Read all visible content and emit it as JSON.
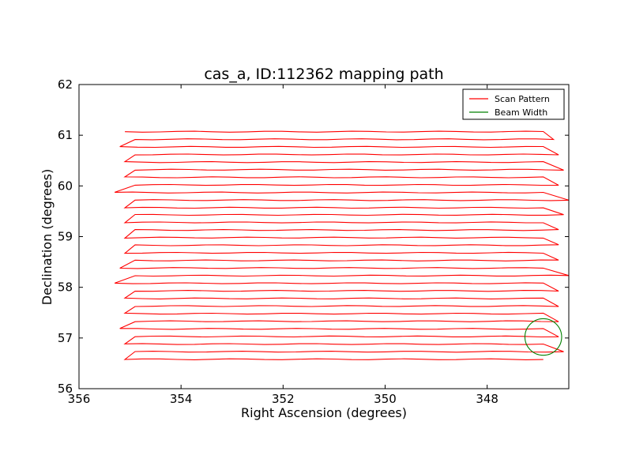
{
  "chart_data": {
    "type": "line",
    "title": "cas_a, ID:112362 mapping path",
    "xlabel": "Right Ascension (degrees)",
    "ylabel": "Declination (degrees)",
    "xlim": [
      356.0,
      346.4
    ],
    "ylim": [
      56,
      62
    ],
    "x_reversed": true,
    "x_ticks": [
      356,
      354,
      352,
      350,
      348
    ],
    "x_tick_labels": [
      "356",
      "354",
      "352",
      "350",
      "348"
    ],
    "y_ticks": [
      56,
      57,
      58,
      59,
      60,
      61,
      62
    ],
    "y_tick_labels": [
      "56",
      "57",
      "58",
      "59",
      "60",
      "61",
      "62"
    ],
    "grid": false,
    "legend_position": "top-right",
    "series": [
      {
        "name": "Scan Pattern",
        "color": "#ff0000",
        "style": "line",
        "rows": [
          {
            "dec": 61.07,
            "ra_start": 355.1,
            "ra_end": 346.9
          },
          {
            "dec": 60.92,
            "ra_start": 354.9,
            "ra_end": 346.7
          },
          {
            "dec": 60.77,
            "ra_start": 355.2,
            "ra_end": 346.9
          },
          {
            "dec": 60.62,
            "ra_start": 354.9,
            "ra_end": 346.6
          },
          {
            "dec": 60.47,
            "ra_start": 355.1,
            "ra_end": 346.9
          },
          {
            "dec": 60.32,
            "ra_start": 354.9,
            "ra_end": 346.5
          },
          {
            "dec": 60.17,
            "ra_start": 355.1,
            "ra_end": 346.9
          },
          {
            "dec": 60.02,
            "ra_start": 354.9,
            "ra_end": 346.6
          },
          {
            "dec": 59.87,
            "ra_start": 355.3,
            "ra_end": 346.9
          },
          {
            "dec": 59.72,
            "ra_start": 354.9,
            "ra_end": 346.4
          },
          {
            "dec": 59.57,
            "ra_start": 355.1,
            "ra_end": 346.9
          },
          {
            "dec": 59.43,
            "ra_start": 354.9,
            "ra_end": 346.5
          },
          {
            "dec": 59.28,
            "ra_start": 355.1,
            "ra_end": 346.9
          },
          {
            "dec": 59.13,
            "ra_start": 354.9,
            "ra_end": 346.6
          },
          {
            "dec": 58.98,
            "ra_start": 355.1,
            "ra_end": 346.9
          },
          {
            "dec": 58.83,
            "ra_start": 354.9,
            "ra_end": 346.6
          },
          {
            "dec": 58.68,
            "ra_start": 355.1,
            "ra_end": 346.9
          },
          {
            "dec": 58.53,
            "ra_start": 354.9,
            "ra_end": 346.6
          },
          {
            "dec": 58.38,
            "ra_start": 355.2,
            "ra_end": 346.9
          },
          {
            "dec": 58.23,
            "ra_start": 354.9,
            "ra_end": 346.4
          },
          {
            "dec": 58.08,
            "ra_start": 355.3,
            "ra_end": 346.9
          },
          {
            "dec": 57.93,
            "ra_start": 354.9,
            "ra_end": 346.6
          },
          {
            "dec": 57.78,
            "ra_start": 355.1,
            "ra_end": 346.9
          },
          {
            "dec": 57.63,
            "ra_start": 354.9,
            "ra_end": 346.6
          },
          {
            "dec": 57.48,
            "ra_start": 355.1,
            "ra_end": 346.9
          },
          {
            "dec": 57.33,
            "ra_start": 354.9,
            "ra_end": 346.6
          },
          {
            "dec": 57.18,
            "ra_start": 355.2,
            "ra_end": 346.9
          },
          {
            "dec": 57.03,
            "ra_start": 354.9,
            "ra_end": 346.6
          },
          {
            "dec": 56.88,
            "ra_start": 355.1,
            "ra_end": 346.9
          },
          {
            "dec": 56.73,
            "ra_start": 354.9,
            "ra_end": 346.5
          },
          {
            "dec": 56.58,
            "ra_start": 355.1,
            "ra_end": 346.9
          }
        ]
      },
      {
        "name": "Beam Width",
        "color": "#008000",
        "style": "circle",
        "center": {
          "ra": 346.9,
          "dec": 57.02
        },
        "radius_deg": 0.36
      }
    ]
  }
}
